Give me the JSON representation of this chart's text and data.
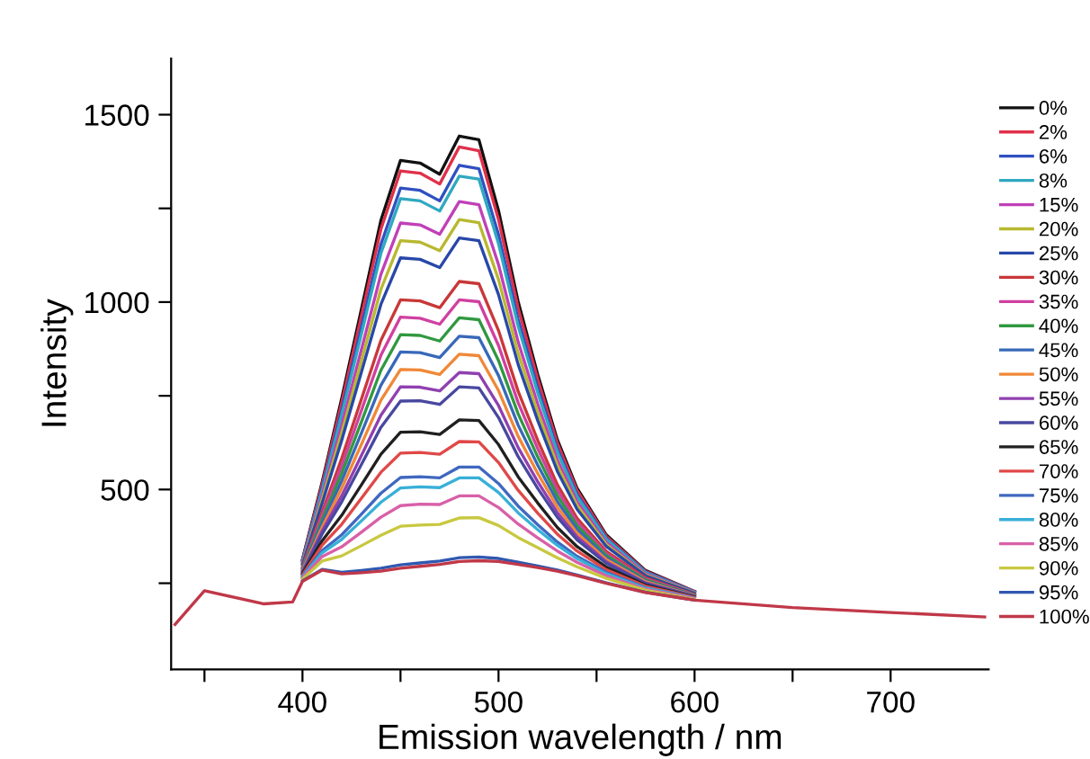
{
  "chart_data": {
    "type": "line",
    "xlabel": "Emission wavelength / nm",
    "ylabel": "Intensity",
    "x": [
      335,
      350,
      380,
      395,
      400,
      410,
      420,
      430,
      440,
      450,
      460,
      470,
      480,
      490,
      500,
      510,
      520,
      530,
      540,
      555,
      575,
      600,
      650,
      700,
      748
    ],
    "xlim": [
      333,
      750
    ],
    "ylim": [
      20,
      1650
    ],
    "xticks": [
      {
        "value": 350,
        "label": null
      },
      400,
      {
        "value": 450,
        "label": null
      },
      500,
      {
        "value": 550,
        "label": null
      },
      600,
      {
        "value": 650,
        "label": null
      },
      700
    ],
    "yticks": [
      {
        "value": 250,
        "label": null
      },
      500,
      {
        "value": 750,
        "label": null
      },
      1000,
      {
        "value": 1250,
        "label": null
      },
      1500
    ],
    "legend": "right",
    "grid": false,
    "marker": "none",
    "line_style": "solid",
    "series": [
      {
        "name": "0%",
        "color": "#111111",
        "values": [
          null,
          null,
          null,
          null,
          314,
          519,
          743,
          980,
          1218,
          1378,
          1371,
          1341,
          1443,
          1433,
          1244,
          1002,
          807,
          633,
          504,
          379,
          284,
          228,
          null,
          null,
          null
        ]
      },
      {
        "name": "2%",
        "color": "#e0304a",
        "values": [
          null,
          null,
          null,
          null,
          312,
          513,
          731,
          962,
          1194,
          1350,
          1344,
          1315,
          1414,
          1404,
          1220,
          984,
          794,
          624,
          498,
          375,
          282,
          228,
          null,
          null,
          null
        ]
      },
      {
        "name": "6%",
        "color": "#3050c0",
        "values": [
          null,
          null,
          null,
          null,
          310,
          503,
          711,
          932,
          1154,
          1304,
          1298,
          1270,
          1365,
          1356,
          1180,
          954,
          772,
          609,
          488,
          370,
          280,
          227,
          null,
          null,
          null
        ]
      },
      {
        "name": "8%",
        "color": "#30a8c0",
        "values": [
          null,
          null,
          null,
          null,
          308,
          497,
          699,
          914,
          1130,
          1276,
          1270,
          1243,
          1336,
          1328,
          1156,
          936,
          758,
          600,
          482,
          367,
          278,
          226,
          null,
          null,
          null
        ]
      },
      {
        "name": "15%",
        "color": "#c040b8",
        "values": [
          null,
          null,
          null,
          null,
          305,
          483,
          671,
          872,
          1074,
          1211,
          1206,
          1181,
          1268,
          1260,
          1100,
          894,
          728,
          579,
          468,
          359,
          275,
          225,
          null,
          null,
          null
        ]
      },
      {
        "name": "20%",
        "color": "#b8b830",
        "values": [
          null,
          null,
          null,
          null,
          302,
          473,
          651,
          842,
          1034,
          1164,
          1160,
          1137,
          1220,
          1212,
          1060,
          864,
          706,
          564,
          458,
          353,
          272,
          224,
          null,
          null,
          null
        ]
      },
      {
        "name": "25%",
        "color": "#2848a8",
        "values": [
          null,
          null,
          null,
          null,
          300,
          463,
          631,
          812,
          994,
          1118,
          1114,
          1092,
          1171,
          1164,
          1020,
          834,
          684,
          549,
          448,
          348,
          270,
          223,
          null,
          null,
          null
        ]
      },
      {
        "name": "30%",
        "color": "#c83838",
        "values": [
          null,
          null,
          null,
          null,
          294,
          439,
          583,
          740,
          898,
          1006,
          1003,
          985,
          1055,
          1049,
          924,
          762,
          631,
          513,
          424,
          335,
          264,
          220,
          null,
          null,
          null
        ]
      },
      {
        "name": "35%",
        "color": "#d040a0",
        "values": [
          null,
          null,
          null,
          null,
          291,
          429,
          563,
          710,
          858,
          960,
          957,
          941,
          1006,
          1001,
          884,
          732,
          609,
          498,
          414,
          329,
          261,
          219,
          null,
          null,
          null
        ]
      },
      {
        "name": "40%",
        "color": "#309840",
        "values": [
          null,
          null,
          null,
          null,
          289,
          419,
          543,
          680,
          818,
          913,
          911,
          896,
          958,
          953,
          844,
          702,
          587,
          483,
          404,
          324,
          259,
          218,
          null,
          null,
          null
        ]
      },
      {
        "name": "45%",
        "color": "#3868b8",
        "values": [
          null,
          null,
          null,
          null,
          286,
          409,
          523,
          650,
          778,
          867,
          865,
          852,
          909,
          905,
          804,
          672,
          565,
          468,
          394,
          318,
          256,
          217,
          null,
          null,
          null
        ]
      },
      {
        "name": "50%",
        "color": "#f08838",
        "values": [
          null,
          null,
          null,
          null,
          284,
          399,
          503,
          620,
          738,
          820,
          819,
          807,
          861,
          857,
          764,
          642,
          543,
          453,
          384,
          313,
          254,
          216,
          null,
          null,
          null
        ]
      },
      {
        "name": "55%",
        "color": "#9040b0",
        "values": [
          null,
          null,
          null,
          null,
          281,
          389,
          483,
          590,
          698,
          774,
          773,
          763,
          812,
          809,
          724,
          612,
          521,
          438,
          374,
          307,
          251,
          215,
          null,
          null,
          null
        ]
      },
      {
        "name": "60%",
        "color": "#4848a0",
        "values": [
          null,
          null,
          null,
          null,
          279,
          381,
          467,
          566,
          666,
          736,
          737,
          727,
          774,
          771,
          692,
          588,
          503,
          426,
          366,
          303,
          249,
          215,
          null,
          null,
          null
        ]
      },
      {
        "name": "65%",
        "color": "#202020",
        "values": [
          null,
          null,
          null,
          null,
          275,
          363,
          431,
          512,
          594,
          653,
          654,
          647,
          686,
          684,
          620,
          534,
          464,
          399,
          348,
          293,
          245,
          213,
          null,
          null,
          null
        ]
      },
      {
        "name": "70%",
        "color": "#e04848",
        "values": [
          null,
          null,
          null,
          null,
          272,
          351,
          407,
          476,
          546,
          597,
          599,
          594,
          628,
          627,
          572,
          498,
          437,
          381,
          336,
          286,
          242,
          212,
          null,
          null,
          null
        ]
      },
      {
        "name": "75%",
        "color": "#4068c0",
        "values": [
          null,
          null,
          null,
          null,
          268,
          337,
          379,
          434,
          490,
          532,
          534,
          531,
          560,
          560,
          516,
          456,
          406,
          360,
          322,
          279,
          238,
          210,
          null,
          null,
          null
        ]
      },
      {
        "name": "80%",
        "color": "#38b0d8",
        "values": [
          null,
          null,
          null,
          null,
          267,
          331,
          367,
          416,
          466,
          504,
          507,
          505,
          531,
          531,
          492,
          438,
          393,
          351,
          316,
          275,
          237,
          210,
          null,
          null,
          null
        ]
      },
      {
        "name": "85%",
        "color": "#d860a8",
        "values": [
          null,
          null,
          null,
          null,
          264,
          321,
          347,
          386,
          426,
          457,
          461,
          460,
          483,
          483,
          452,
          408,
          371,
          336,
          306,
          270,
          234,
          209,
          null,
          null,
          null
        ]
      },
      {
        "name": "90%",
        "color": "#c8c840",
        "values": [
          null,
          null,
          null,
          null,
          261,
          309,
          323,
          350,
          378,
          402,
          405,
          407,
          424,
          425,
          404,
          372,
          345,
          318,
          294,
          263,
          231,
          207,
          null,
          null,
          null
        ]
      },
      {
        "name": "95%",
        "color": "#3058b0",
        "values": [
          null,
          null,
          null,
          null,
          256,
          287,
          279,
          284,
          290,
          299,
          304,
          309,
          318,
          320,
          316,
          306,
          296,
          285,
          272,
          251,
          226,
          205,
          null,
          null,
          null
        ]
      },
      {
        "name": "100%",
        "color": "#c03848",
        "values": [
          140,
          230,
          195,
          200,
          255,
          285,
          275,
          278,
          282,
          290,
          295,
          300,
          308,
          310,
          308,
          300,
          292,
          282,
          270,
          250,
          225,
          205,
          185,
          172,
          160
        ]
      }
    ]
  }
}
